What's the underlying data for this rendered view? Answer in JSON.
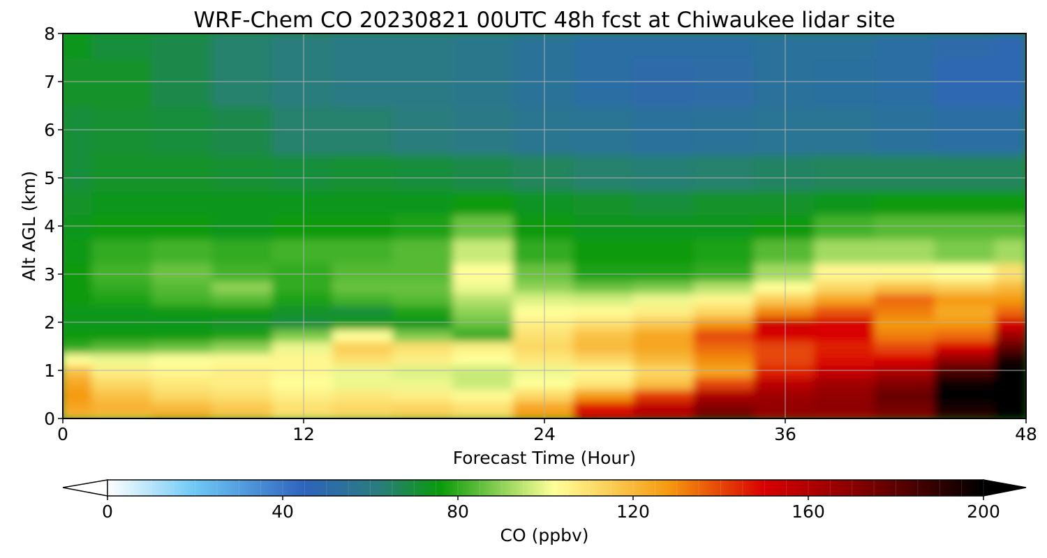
{
  "chart_data": {
    "type": "heatmap",
    "title": "WRF-Chem CO  20230821 00UTC 48h fcst at Chiwaukee lidar site",
    "xlabel": "Forecast Time (Hour)",
    "ylabel": "Alt AGL (km)",
    "xlim": [
      0,
      48
    ],
    "ylim": [
      0,
      8
    ],
    "x_ticks": [
      "0",
      "12",
      "24",
      "36",
      "48"
    ],
    "y_ticks": [
      "0",
      "1",
      "2",
      "3",
      "4",
      "5",
      "6",
      "7",
      "8"
    ],
    "grid": true,
    "colorbar": {
      "label": "CO  (ppbv)",
      "min": 0,
      "max": 200,
      "ticks": [
        "0",
        "40",
        "80",
        "120",
        "160",
        "200"
      ],
      "extend": "both",
      "colors": [
        {
          "value": 0,
          "color": "#ffffff"
        },
        {
          "value": 20,
          "color": "#6ec8f5"
        },
        {
          "value": 45,
          "color": "#2e63bd"
        },
        {
          "value": 62,
          "color": "#2a7d7d"
        },
        {
          "value": 76,
          "color": "#0a9a0a"
        },
        {
          "value": 96,
          "color": "#c8ea78"
        },
        {
          "value": 102,
          "color": "#ffff9a"
        },
        {
          "value": 128,
          "color": "#f59a10"
        },
        {
          "value": 150,
          "color": "#d80000"
        },
        {
          "value": 170,
          "color": "#8b0000"
        },
        {
          "value": 200,
          "color": "#000000"
        }
      ]
    },
    "x_hours": [
      0,
      3,
      6,
      9,
      12,
      15,
      18,
      21,
      24,
      27,
      30,
      33,
      36,
      39,
      42,
      45,
      48
    ],
    "altitudes_km": [
      0,
      0.25,
      0.5,
      0.75,
      1,
      1.25,
      1.5,
      1.75,
      2,
      2.25,
      2.5,
      2.75,
      3,
      3.5,
      4,
      4.5,
      5,
      6,
      7,
      8
    ],
    "co_ppbv": [
      [
        120,
        118,
        125,
        118,
        110,
        112,
        115,
        112,
        128,
        152,
        160,
        178,
        165,
        162,
        170,
        188,
        205
      ],
      [
        125,
        122,
        120,
        116,
        110,
        112,
        113,
        110,
        125,
        148,
        158,
        172,
        168,
        170,
        175,
        195,
        210
      ],
      [
        128,
        118,
        112,
        110,
        106,
        108,
        106,
        103,
        112,
        128,
        142,
        162,
        165,
        168,
        178,
        200,
        210
      ],
      [
        125,
        112,
        108,
        106,
        102,
        100,
        100,
        96,
        102,
        108,
        118,
        140,
        158,
        165,
        172,
        198,
        210
      ],
      [
        118,
        106,
        104,
        106,
        104,
        100,
        98,
        96,
        100,
        104,
        112,
        125,
        145,
        155,
        162,
        185,
        205
      ],
      [
        102,
        100,
        102,
        103,
        104,
        110,
        106,
        102,
        108,
        112,
        120,
        130,
        140,
        148,
        150,
        168,
        195
      ],
      [
        80,
        84,
        86,
        90,
        100,
        115,
        110,
        106,
        112,
        120,
        125,
        135,
        140,
        145,
        140,
        150,
        180
      ],
      [
        76,
        76,
        76,
        78,
        88,
        102,
        88,
        80,
        110,
        118,
        125,
        140,
        150,
        150,
        132,
        135,
        165
      ],
      [
        74,
        74,
        74,
        72,
        70,
        76,
        74,
        86,
        106,
        110,
        116,
        128,
        152,
        150,
        128,
        128,
        150
      ],
      [
        74,
        74,
        75,
        76,
        72,
        70,
        78,
        90,
        102,
        103,
        106,
        112,
        130,
        138,
        132,
        124,
        135
      ],
      [
        76,
        78,
        82,
        84,
        78,
        82,
        84,
        94,
        98,
        97,
        100,
        104,
        115,
        125,
        135,
        128,
        128
      ],
      [
        76,
        80,
        84,
        90,
        80,
        86,
        86,
        100,
        90,
        86,
        88,
        94,
        102,
        112,
        118,
        115,
        120
      ],
      [
        76,
        82,
        86,
        82,
        80,
        84,
        84,
        102,
        86,
        78,
        78,
        80,
        92,
        104,
        104,
        102,
        110
      ],
      [
        75,
        80,
        82,
        80,
        82,
        82,
        84,
        96,
        80,
        76,
        76,
        78,
        84,
        92,
        92,
        88,
        92
      ],
      [
        74,
        76,
        76,
        74,
        76,
        76,
        78,
        86,
        76,
        74,
        74,
        74,
        76,
        82,
        84,
        84,
        84
      ],
      [
        72,
        74,
        74,
        74,
        74,
        74,
        74,
        76,
        73,
        72,
        70,
        72,
        72,
        74,
        76,
        76,
        76
      ],
      [
        70,
        72,
        72,
        71,
        70,
        71,
        70,
        68,
        66,
        64,
        63,
        64,
        65,
        66,
        66,
        66,
        66
      ],
      [
        70,
        71,
        70,
        68,
        64,
        64,
        62,
        60,
        57,
        56,
        54,
        55,
        56,
        56,
        54,
        52,
        52
      ],
      [
        72,
        72,
        68,
        64,
        62,
        60,
        60,
        58,
        55,
        52,
        50,
        51,
        54,
        53,
        52,
        48,
        48
      ],
      [
        74,
        70,
        68,
        64,
        62,
        60,
        60,
        58,
        55,
        52,
        52,
        52,
        54,
        54,
        52,
        50,
        48
      ]
    ]
  }
}
